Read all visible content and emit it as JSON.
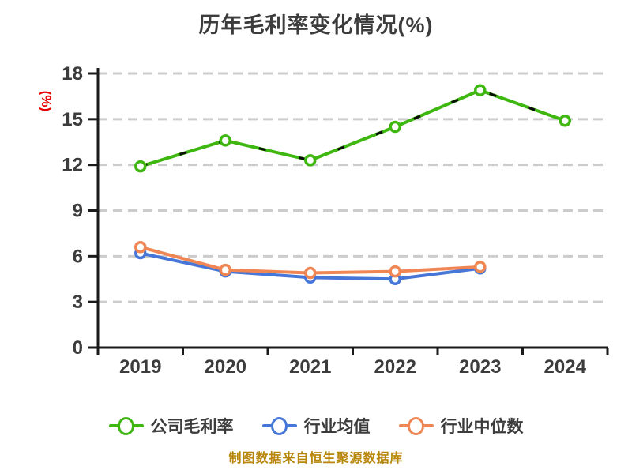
{
  "chart_data": {
    "type": "line",
    "title": "历年毛利率变化情况(%)",
    "ylabel": "(%)",
    "footer": "制图数据来自恒生聚源数据库",
    "categories": [
      "2019",
      "2020",
      "2021",
      "2022",
      "2023",
      "2024"
    ],
    "y_ticks": [
      0,
      3,
      6,
      9,
      12,
      15,
      18
    ],
    "ylim": [
      0,
      18
    ],
    "grid": "horizontal-dashed",
    "legend_position": "bottom",
    "marker_fill": "#ffffff",
    "series": [
      {
        "name": "公司毛利率",
        "color": "#3eb810",
        "values": [
          11.9,
          13.6,
          12.3,
          14.5,
          16.9,
          14.9
        ]
      },
      {
        "name": "行业均值",
        "color": "#4676d8",
        "values": [
          6.2,
          5.0,
          4.6,
          4.5,
          5.2,
          null
        ]
      },
      {
        "name": "行业中位数",
        "color": "#f08654",
        "values": [
          6.6,
          5.1,
          4.9,
          5.0,
          5.3,
          null
        ]
      }
    ]
  },
  "styles": {
    "title_color": "#3c3c3c",
    "ylabel_color": "#e60000",
    "footer_color": "#b8860b",
    "tick_label_color": "#3c3c3c",
    "legend_text_color": "#3c3c3c",
    "grid_color": "#cccccc",
    "axis_color": "#1a1a1a",
    "background": "#ffffff"
  }
}
